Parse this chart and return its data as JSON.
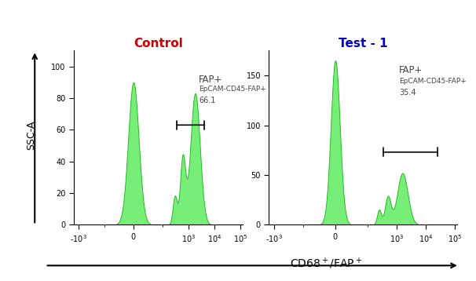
{
  "fig_width": 6.06,
  "fig_height": 3.58,
  "dpi": 100,
  "bg_color": "#ffffff",
  "panel1_title": "Control",
  "panel1_title_color": "#cc0000",
  "panel2_title": "Test - 1",
  "panel2_title_color": "#0000cc",
  "xlabel": "CD68⁺/FAP⁺",
  "ylabel": "SSC-A",
  "fill_color": "#77ee77",
  "edge_color": "#22bb22",
  "panel1_ylim": [
    0,
    110
  ],
  "panel2_ylim": [
    0,
    175
  ],
  "panel1_yticks": [
    0,
    20,
    40,
    60,
    80,
    100
  ],
  "panel2_yticks": [
    0,
    50,
    100,
    150
  ],
  "panel1_annotation_line1": "FAP+",
  "panel1_annotation_line2": "EpCAM-CD45-FAP+",
  "panel1_annotation_line3": "66.1",
  "panel2_annotation_line1": "FAP+",
  "panel2_annotation_line2": "EpCAM-CD45-FAP+",
  "panel2_annotation_line3": "35.4",
  "annotation_color": "#444444",
  "linthresh": 100,
  "xlim_low": -1500,
  "xlim_high": 120000,
  "xticks": [
    -1000,
    0,
    1000,
    10000,
    100000
  ],
  "xticklabels": [
    "-10$^3$",
    "0",
    "10$^3$",
    "10$^4$",
    "10$^5$"
  ]
}
